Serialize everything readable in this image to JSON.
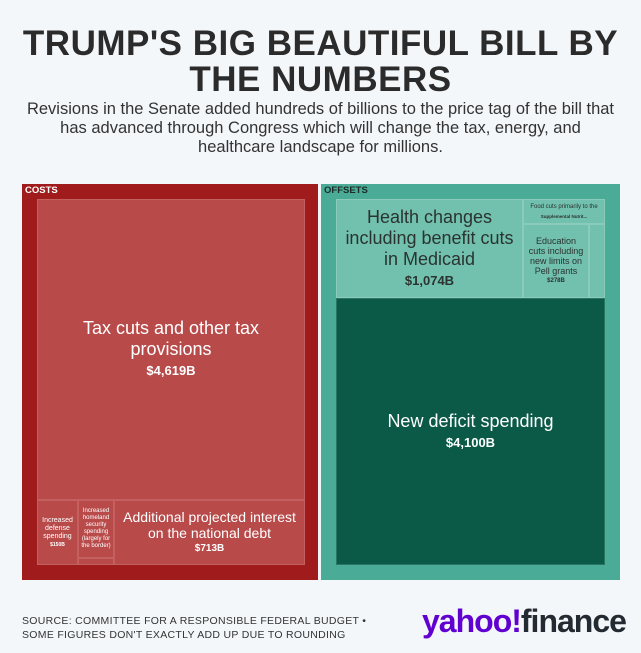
{
  "title": "TRUMP'S BIG BEAUTIFUL BILL BY THE NUMBERS",
  "subtitle": "Revisions in the Senate added hundreds of billions to the price tag of the bill that has advanced through Congress which will change the tax, energy, and healthcare landscape for millions.",
  "chart_data": {
    "type": "treemap",
    "groups": [
      {
        "name": "COSTS",
        "color": "#a01c1c",
        "items": [
          {
            "label": "Tax cuts and other tax provisions",
            "value_label": "$4,619B",
            "value": 4619
          },
          {
            "label": "Increased defense spending",
            "value_label": "$150B",
            "value": 150
          },
          {
            "label": "Increased homeland security spending (largely for the border)",
            "value_label": "",
            "value": null
          },
          {
            "label": "Additional projected interest on the national debt",
            "value_label": "$713B",
            "value": 713
          }
        ]
      },
      {
        "name": "OFFSETS",
        "color": "#4aab96",
        "items": [
          {
            "label": "Health changes including benefit cuts in Medicaid",
            "value_label": "$1,074B",
            "value": 1074
          },
          {
            "label": "Food cuts primarily to the",
            "sublabel": "Supplemental Nutrit...",
            "value": null
          },
          {
            "label": "Education cuts including new limits on Pell grants",
            "value_label": "$278B",
            "value": 278
          },
          {
            "label": "New deficit spending",
            "value_label": "$4,100B",
            "value": 4100
          }
        ]
      }
    ]
  },
  "footer": {
    "source_line1": "SOURCE: COMMITTEE FOR A RESPONSIBLE FEDERAL BUDGET •",
    "source_line2": "SOME FIGURES DON'T EXACTLY ADD UP DUE TO ROUNDING",
    "logo_part1": "yahoo!",
    "logo_part2": "finance",
    "logo_color": "#6001d2"
  }
}
